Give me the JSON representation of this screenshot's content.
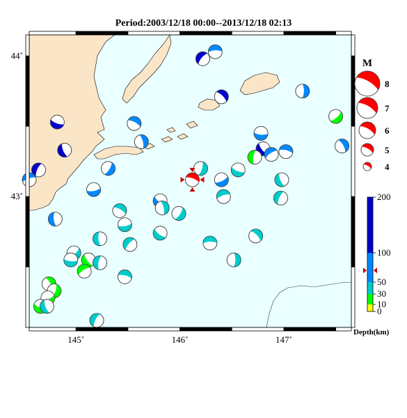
{
  "title": "Period:2003/12/18 00:00--2013/12/18 02:13",
  "colors": {
    "sea": "#eaffff",
    "land": "#fbe5c7",
    "coast": "#000000",
    "frame": "#000000"
  },
  "chart_data": {
    "type": "map",
    "x_ticks": [
      {
        "value": 145,
        "label": "145˚"
      },
      {
        "value": 146,
        "label": "146˚"
      },
      {
        "value": 147,
        "label": "147˚"
      }
    ],
    "y_ticks": [
      {
        "value": 44,
        "label": "44˚"
      },
      {
        "value": 43,
        "label": "43˚"
      }
    ],
    "xlim": [
      144.55,
      147.65
    ],
    "ylim": [
      42.07,
      44.15
    ],
    "magnitude_legend": {
      "title": "M",
      "entries": [
        {
          "label": "8",
          "value": 8
        },
        {
          "label": "7",
          "value": 7
        },
        {
          "label": "6",
          "value": 6
        },
        {
          "label": "5",
          "value": 5
        },
        {
          "label": "4",
          "value": 4
        }
      ]
    },
    "depth_colorbar": {
      "title": "Depth(km)",
      "labels": [
        "200",
        "100",
        "50",
        "30",
        "10",
        "0"
      ],
      "bands": [
        {
          "from": 0,
          "to": 10,
          "color": "#ffff00"
        },
        {
          "from": 10,
          "to": 30,
          "color": "#00ff00"
        },
        {
          "from": 30,
          "to": 50,
          "color": "#00cccc"
        },
        {
          "from": 50,
          "to": 100,
          "color": "#0088ff"
        },
        {
          "from": 100,
          "to": 200,
          "color": "#0000cc"
        }
      ],
      "marker_depth": 70
    },
    "main_event": {
      "lon": 146.12,
      "lat": 43.12,
      "color": "#ff0000"
    },
    "events": [
      {
        "lon": 144.82,
        "lat": 43.53,
        "color": "#0000cc"
      },
      {
        "lon": 144.89,
        "lat": 43.33,
        "color": "#0000cc"
      },
      {
        "lon": 144.64,
        "lat": 43.19,
        "color": "#0000cc"
      },
      {
        "lon": 144.55,
        "lat": 43.12,
        "color": "#0088ff"
      },
      {
        "lon": 145.56,
        "lat": 43.52,
        "color": "#0088ff"
      },
      {
        "lon": 145.63,
        "lat": 43.39,
        "color": "#0088ff"
      },
      {
        "lon": 145.31,
        "lat": 43.2,
        "color": "#0088ff"
      },
      {
        "lon": 145.17,
        "lat": 43.05,
        "color": "#0088ff"
      },
      {
        "lon": 145.81,
        "lat": 42.97,
        "color": "#0088ff"
      },
      {
        "lon": 144.8,
        "lat": 42.84,
        "color": "#0088ff"
      },
      {
        "lon": 146.22,
        "lat": 43.98,
        "color": "#0000cc"
      },
      {
        "lon": 146.34,
        "lat": 44.03,
        "color": "#0088ff"
      },
      {
        "lon": 146.4,
        "lat": 43.71,
        "color": "#0000cc"
      },
      {
        "lon": 147.18,
        "lat": 43.75,
        "color": "#0088ff"
      },
      {
        "lon": 147.5,
        "lat": 43.57,
        "color": "#00ff00"
      },
      {
        "lon": 146.78,
        "lat": 43.45,
        "color": "#0088ff"
      },
      {
        "lon": 146.8,
        "lat": 43.34,
        "color": "#0000cc"
      },
      {
        "lon": 146.72,
        "lat": 43.28,
        "color": "#00ff00"
      },
      {
        "lon": 146.88,
        "lat": 43.3,
        "color": "#0088ff"
      },
      {
        "lon": 147.02,
        "lat": 43.32,
        "color": "#0088ff"
      },
      {
        "lon": 147.56,
        "lat": 43.36,
        "color": "#0088ff"
      },
      {
        "lon": 146.2,
        "lat": 43.2,
        "color": "#00cccc"
      },
      {
        "lon": 146.4,
        "lat": 43.12,
        "color": "#0088ff"
      },
      {
        "lon": 146.56,
        "lat": 43.19,
        "color": "#00cccc"
      },
      {
        "lon": 146.98,
        "lat": 43.12,
        "color": "#00cccc"
      },
      {
        "lon": 146.97,
        "lat": 42.99,
        "color": "#00cccc"
      },
      {
        "lon": 146.42,
        "lat": 43.0,
        "color": "#00cccc"
      },
      {
        "lon": 145.42,
        "lat": 42.9,
        "color": "#00cccc"
      },
      {
        "lon": 145.83,
        "lat": 42.92,
        "color": "#00cccc"
      },
      {
        "lon": 145.99,
        "lat": 42.88,
        "color": "#00cccc"
      },
      {
        "lon": 145.47,
        "lat": 42.8,
        "color": "#00cccc"
      },
      {
        "lon": 145.81,
        "lat": 42.74,
        "color": "#00cccc"
      },
      {
        "lon": 145.23,
        "lat": 42.7,
        "color": "#00cccc"
      },
      {
        "lon": 145.52,
        "lat": 42.66,
        "color": "#00cccc"
      },
      {
        "lon": 146.29,
        "lat": 42.67,
        "color": "#00cccc"
      },
      {
        "lon": 146.73,
        "lat": 42.72,
        "color": "#00cccc"
      },
      {
        "lon": 146.52,
        "lat": 42.55,
        "color": "#00cccc"
      },
      {
        "lon": 144.98,
        "lat": 42.6,
        "color": "#00cccc"
      },
      {
        "lon": 144.95,
        "lat": 42.55,
        "color": "#00cccc"
      },
      {
        "lon": 145.12,
        "lat": 42.55,
        "color": "#00ff00"
      },
      {
        "lon": 145.23,
        "lat": 42.53,
        "color": "#00cccc"
      },
      {
        "lon": 145.08,
        "lat": 42.47,
        "color": "#00ff00"
      },
      {
        "lon": 145.47,
        "lat": 42.43,
        "color": "#00cccc"
      },
      {
        "lon": 144.74,
        "lat": 42.38,
        "color": "#00ff00"
      },
      {
        "lon": 144.79,
        "lat": 42.33,
        "color": "#00ff00"
      },
      {
        "lon": 144.73,
        "lat": 42.28,
        "color": "#00ff00"
      },
      {
        "lon": 144.66,
        "lat": 42.22,
        "color": "#00ff00"
      },
      {
        "lon": 144.72,
        "lat": 42.22,
        "color": "#00cccc"
      },
      {
        "lon": 145.2,
        "lat": 42.12,
        "color": "#00cccc"
      }
    ]
  }
}
